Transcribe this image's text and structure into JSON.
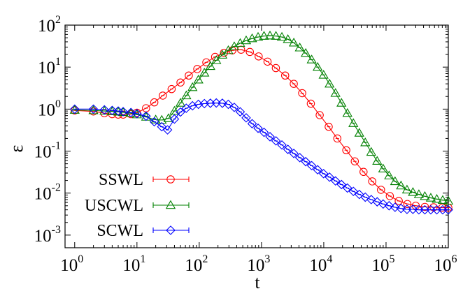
{
  "chart_data": {
    "type": "line",
    "xlabel": "t",
    "ylabel": "ε",
    "xscale": "log",
    "yscale": "log",
    "xlim": [
      0.7,
      1000000
    ],
    "ylim": [
      0.0005,
      100
    ],
    "grid": false,
    "legend": "bottom-left",
    "x_ticks": [
      {
        "base": "10",
        "exp": "0",
        "value": 1
      },
      {
        "base": "10",
        "exp": "1",
        "value": 10
      },
      {
        "base": "10",
        "exp": "2",
        "value": 100
      },
      {
        "base": "10",
        "exp": "3",
        "value": 1000
      },
      {
        "base": "10",
        "exp": "4",
        "value": 10000
      },
      {
        "base": "10",
        "exp": "5",
        "value": 100000
      },
      {
        "base": "10",
        "exp": "6",
        "value": 1000000
      }
    ],
    "y_ticks": [
      {
        "base": "10",
        "exp": "-3",
        "value": 0.001
      },
      {
        "base": "10",
        "exp": "-2",
        "value": 0.01
      },
      {
        "base": "10",
        "exp": "-1",
        "value": 0.1
      },
      {
        "base": "10",
        "exp": "0",
        "value": 1
      },
      {
        "base": "10",
        "exp": "1",
        "value": 10
      },
      {
        "base": "10",
        "exp": "2",
        "value": 100
      }
    ],
    "series": [
      {
        "name": "SSWL",
        "color": "#ff0000",
        "marker": "circle",
        "x": [
          1,
          2,
          3,
          4,
          5,
          6,
          8,
          10,
          14,
          19,
          26,
          36,
          50,
          68,
          93,
          130,
          180,
          250,
          340,
          470,
          650,
          900,
          1250,
          1700,
          2400,
          3300,
          4500,
          6200,
          8600,
          12000,
          16500,
          23000,
          31500,
          43500,
          60000,
          83000,
          115000,
          160000,
          220000,
          300000,
          420000,
          580000,
          800000,
          1000000
        ],
        "y": [
          0.93,
          0.88,
          0.8,
          0.76,
          0.74,
          0.74,
          0.76,
          0.82,
          1.05,
          1.45,
          2.1,
          3.0,
          4.3,
          6.3,
          9.0,
          13,
          17.5,
          22,
          25,
          26,
          23,
          18,
          13.5,
          9.5,
          6.3,
          4.0,
          2.4,
          1.35,
          0.72,
          0.38,
          0.2,
          0.105,
          0.057,
          0.032,
          0.019,
          0.012,
          0.0085,
          0.0065,
          0.0055,
          0.005,
          0.0047,
          0.0046,
          0.0045,
          0.0045
        ]
      },
      {
        "name": "USCWL",
        "color": "#008000",
        "marker": "triangle",
        "x": [
          1,
          2,
          3,
          4,
          5,
          6,
          8,
          10,
          14,
          20,
          25,
          32,
          40,
          50,
          62,
          78,
          97,
          121,
          151,
          188,
          235,
          293,
          365,
          455,
          567,
          707,
          881,
          1098,
          1369,
          1706,
          2126,
          2650,
          3303,
          4117,
          5131,
          6395,
          7970,
          9933,
          12380,
          15430,
          19230,
          23970,
          29870,
          37230,
          46400,
          57830,
          72080,
          89830,
          112000,
          139500,
          173900,
          216800,
          270200,
          336700,
          419700,
          523100,
          652000,
          812600,
          1000000
        ],
        "y": [
          0.95,
          0.93,
          0.9,
          0.88,
          0.86,
          0.84,
          0.8,
          0.74,
          0.65,
          0.56,
          0.55,
          0.6,
          0.9,
          1.4,
          2.1,
          3.3,
          5.0,
          7.3,
          10.5,
          14.5,
          19.5,
          25,
          31,
          37,
          43,
          48,
          52,
          55,
          56,
          55,
          52,
          46,
          38,
          29,
          21.5,
          15,
          10,
          6.5,
          4.0,
          2.4,
          1.4,
          0.8,
          0.46,
          0.27,
          0.16,
          0.095,
          0.058,
          0.038,
          0.026,
          0.019,
          0.015,
          0.012,
          0.0105,
          0.0093,
          0.0084,
          0.0077,
          0.0072,
          0.0068,
          0.0065
        ]
      },
      {
        "name": "SCWL",
        "color": "#0000ff",
        "marker": "diamond",
        "x": [
          1,
          2,
          3,
          4,
          5,
          6,
          8,
          10,
          14,
          19,
          25,
          31,
          40,
          50,
          62,
          78,
          97,
          121,
          151,
          188,
          235,
          293,
          365,
          455,
          567,
          707,
          881,
          1098,
          1369,
          1706,
          2126,
          2650,
          3303,
          4117,
          5131,
          6395,
          7970,
          9933,
          12380,
          15430,
          19230,
          23970,
          29870,
          37230,
          46400,
          57830,
          72080,
          89830,
          112000,
          139500,
          173900,
          216800,
          270200,
          336700,
          419700,
          523100,
          652000,
          812600,
          1000000
        ],
        "y": [
          1.0,
          1.0,
          0.96,
          0.93,
          0.9,
          0.87,
          0.83,
          0.78,
          0.68,
          0.5,
          0.38,
          0.32,
          0.58,
          0.85,
          1.05,
          1.2,
          1.3,
          1.35,
          1.38,
          1.4,
          1.38,
          1.3,
          1.1,
          0.86,
          0.62,
          0.45,
          0.35,
          0.28,
          0.22,
          0.175,
          0.14,
          0.11,
          0.088,
          0.07,
          0.056,
          0.045,
          0.036,
          0.029,
          0.024,
          0.0195,
          0.016,
          0.0132,
          0.011,
          0.0093,
          0.008,
          0.007,
          0.0062,
          0.0055,
          0.005,
          0.0046,
          0.0043,
          0.0041,
          0.0041,
          0.004,
          0.004,
          0.004,
          0.004,
          0.004,
          0.004
        ]
      }
    ]
  }
}
